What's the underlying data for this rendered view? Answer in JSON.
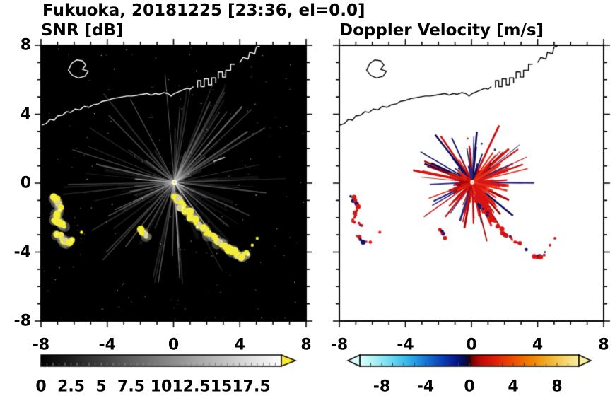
{
  "title": "Fukuoka, 20181225 [23:36, el=0.0]",
  "axes": {
    "xlim": [
      -8,
      8
    ],
    "ylim": [
      -8,
      8
    ],
    "xticks": [
      -8,
      -4,
      0,
      4,
      8
    ],
    "yticks": [
      -8,
      -4,
      0,
      4,
      8
    ],
    "xtick_labels": [
      "-8",
      "-4",
      "0",
      "4",
      "8"
    ],
    "ytick_labels": [
      "-8",
      "-4",
      "0",
      "4",
      "8"
    ],
    "minor_tick_step": 1
  },
  "coastline": {
    "main": [
      [
        -8,
        3.35
      ],
      [
        -7.7,
        3.45
      ],
      [
        -7.45,
        3.7
      ],
      [
        -7.2,
        3.65
      ],
      [
        -7.0,
        3.9
      ],
      [
        -6.7,
        3.95
      ],
      [
        -6.45,
        4.15
      ],
      [
        -6.2,
        4.1
      ],
      [
        -5.95,
        4.3
      ],
      [
        -5.65,
        4.25
      ],
      [
        -5.4,
        4.45
      ],
      [
        -5.1,
        4.4
      ],
      [
        -4.85,
        4.55
      ],
      [
        -4.55,
        4.6
      ],
      [
        -4.3,
        4.75
      ],
      [
        -4.0,
        4.8
      ],
      [
        -3.7,
        4.9
      ],
      [
        -3.4,
        4.95
      ],
      [
        -3.1,
        5.0
      ],
      [
        -2.8,
        5.05
      ],
      [
        -2.5,
        5.05
      ],
      [
        -2.2,
        5.1
      ],
      [
        -1.9,
        5.15
      ],
      [
        -1.6,
        5.2
      ],
      [
        -1.35,
        5.1
      ],
      [
        -1.1,
        5.2
      ],
      [
        -0.85,
        5.15
      ],
      [
        -0.6,
        5.25
      ],
      [
        -0.35,
        5.2
      ],
      [
        -0.15,
        5.05
      ],
      [
        0.05,
        5.2
      ],
      [
        0.3,
        5.3
      ],
      [
        0.55,
        5.4
      ],
      [
        0.8,
        5.5
      ],
      [
        1.0,
        5.45
      ],
      [
        1.2,
        5.6
      ]
    ],
    "island": [
      [
        -6.35,
        6.55
      ],
      [
        -6.15,
        6.95
      ],
      [
        -5.85,
        7.15
      ],
      [
        -5.5,
        7.1
      ],
      [
        -5.3,
        6.85
      ],
      [
        -5.5,
        6.6
      ],
      [
        -5.15,
        6.5
      ],
      [
        -5.35,
        6.2
      ],
      [
        -5.75,
        6.1
      ],
      [
        -6.1,
        6.25
      ]
    ],
    "pier1": [
      [
        1.45,
        5.55
      ],
      [
        1.45,
        5.95
      ],
      [
        1.65,
        5.95
      ],
      [
        1.65,
        5.6
      ],
      [
        1.85,
        5.6
      ],
      [
        1.85,
        6.05
      ],
      [
        2.1,
        6.05
      ],
      [
        2.1,
        5.7
      ],
      [
        2.3,
        5.7
      ],
      [
        2.3,
        6.1
      ],
      [
        2.55,
        6.1
      ],
      [
        2.55,
        5.8
      ]
    ],
    "pier2": [
      [
        2.7,
        6.05
      ],
      [
        2.7,
        6.45
      ],
      [
        2.95,
        6.45
      ],
      [
        2.95,
        6.15
      ],
      [
        3.15,
        6.15
      ],
      [
        3.15,
        6.55
      ],
      [
        3.45,
        6.55
      ],
      [
        3.45,
        6.9
      ],
      [
        3.7,
        6.9
      ]
    ],
    "topright": [
      [
        4.0,
        7.0
      ],
      [
        4.2,
        7.3
      ],
      [
        4.5,
        7.2
      ],
      [
        4.6,
        7.6
      ],
      [
        4.9,
        7.5
      ],
      [
        5.0,
        7.9
      ],
      [
        5.2,
        7.95
      ]
    ]
  },
  "chart_data": [
    {
      "type": "heatmap",
      "panel": "left",
      "title": "SNR [dB]",
      "xlim": [
        -8,
        8
      ],
      "ylim": [
        -8,
        8
      ],
      "xticks": [
        -8,
        -4,
        0,
        4,
        8
      ],
      "yticks": [
        -8,
        -4,
        0,
        4,
        8
      ],
      "background": "#000000",
      "colorbar": {
        "range": [
          0,
          20
        ],
        "ticks": [
          0,
          2.5,
          5,
          7.5,
          10,
          12.5,
          15,
          17.5
        ],
        "tick_labels": [
          "0",
          "2.5",
          "5",
          "7.5",
          "10",
          "12.5",
          "15",
          "17.5"
        ],
        "minor_tick_step": 0.5,
        "colors": [
          [
            0,
            "#000000"
          ],
          [
            1,
            "#ffffff"
          ]
        ],
        "overflow_color": "#ffe832"
      },
      "features": {
        "radar_center": [
          0.05,
          0.05
        ],
        "beam_streaks": "gray radial rays emanating from radar at origin",
        "noise": "sparse white speckle over black background",
        "coastline_color": "#ffffff",
        "clutter_color": "#f3ed3a",
        "clutter_arcs": [
          [
            [
              -7.25,
              -0.8
            ],
            [
              -7.0,
              -1.05
            ],
            [
              -6.9,
              -1.45
            ],
            [
              -7.05,
              -1.8
            ],
            [
              -7.15,
              -2.15
            ],
            [
              -6.85,
              -2.35
            ],
            [
              -6.55,
              -2.5
            ]
          ],
          [
            [
              -7.0,
              -3.0
            ],
            [
              -6.7,
              -3.3
            ],
            [
              -6.4,
              -3.5
            ],
            [
              -6.1,
              -3.4
            ]
          ],
          [
            [
              -1.9,
              -2.7
            ],
            [
              -1.6,
              -3.2
            ]
          ],
          [
            [
              0.0,
              -0.75
            ],
            [
              0.3,
              -1.0
            ],
            [
              0.5,
              -1.4
            ],
            [
              0.85,
              -1.6
            ],
            [
              1.05,
              -1.95
            ],
            [
              1.35,
              -2.1
            ],
            [
              1.5,
              -2.5
            ],
            [
              1.85,
              -2.65
            ],
            [
              2.05,
              -3.0
            ],
            [
              2.4,
              -3.1
            ],
            [
              2.6,
              -3.4
            ],
            [
              2.95,
              -3.55
            ],
            [
              3.25,
              -3.8
            ],
            [
              3.6,
              -3.95
            ],
            [
              3.85,
              -4.2
            ],
            [
              4.15,
              -4.25
            ],
            [
              4.4,
              -4.05
            ]
          ]
        ],
        "clutter_dots": [
          [
            -5.55,
            -2.85
          ],
          [
            4.75,
            -3.6
          ],
          [
            5.05,
            -3.2
          ]
        ]
      }
    },
    {
      "type": "heatmap",
      "panel": "right",
      "title": "Doppler Velocity [m/s]",
      "xlim": [
        -8,
        8
      ],
      "ylim": [
        -8,
        8
      ],
      "xticks": [
        -8,
        -4,
        0,
        4,
        8
      ],
      "yticks": [
        -8,
        -4,
        0,
        4,
        8
      ],
      "background": "#ffffff",
      "colorbar": {
        "range": [
          -10,
          10
        ],
        "ticks": [
          -8,
          -4,
          0,
          4,
          8
        ],
        "tick_labels": [
          "-8",
          "-4",
          "0",
          "4",
          "8"
        ],
        "minor_tick_step": 1,
        "colors": [
          [
            0,
            "#dcffff"
          ],
          [
            0.07,
            "#a8f0f2"
          ],
          [
            0.15,
            "#64d8f2"
          ],
          [
            0.22,
            "#32b4ea"
          ],
          [
            0.3,
            "#1678d8"
          ],
          [
            0.37,
            "#0a44bc"
          ],
          [
            0.43,
            "#081c94"
          ],
          [
            0.475,
            "#060c58"
          ],
          [
            0.5,
            "#1c060c"
          ],
          [
            0.515,
            "#7c0404"
          ],
          [
            0.55,
            "#c00808"
          ],
          [
            0.62,
            "#e02008"
          ],
          [
            0.7,
            "#ec5000"
          ],
          [
            0.78,
            "#f08000"
          ],
          [
            0.86,
            "#f0b028"
          ],
          [
            0.93,
            "#f4d464"
          ],
          [
            1,
            "#f8eea0"
          ]
        ],
        "underflow_color": "#dcffff",
        "overflow_color": "#f8eea0"
      },
      "features": {
        "radar_center": [
          0.05,
          0.05
        ],
        "positive_color": "#d91414",
        "negative_color": "#12126a",
        "coastline_color": "#000000",
        "burst": "red and navy radial velocity burst around radar center",
        "red_arm": [
          [
            0.45,
            -0.6
          ],
          [
            0.75,
            -1.15
          ],
          [
            1.0,
            -1.65
          ],
          [
            1.25,
            -2.15
          ]
        ],
        "specks": [
          [
            1.4,
            1.95,
            "navy"
          ],
          [
            -0.25,
            2.6,
            "red"
          ],
          [
            0.6,
            2.3,
            "navy"
          ],
          [
            2.5,
            0.9,
            "red"
          ]
        ],
        "arcs_same_as_snr_clutter": true
      }
    }
  ]
}
